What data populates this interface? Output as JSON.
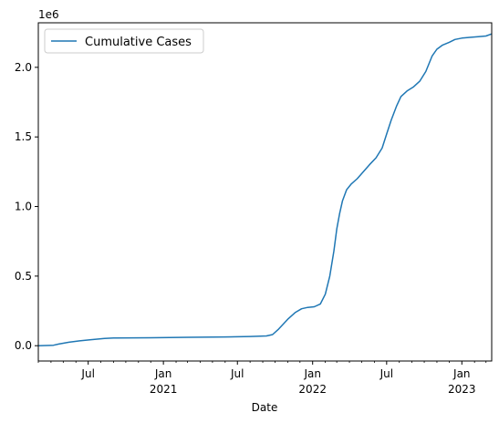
{
  "chart_data": {
    "type": "line",
    "xlabel": "Date",
    "ylabel": "",
    "offset_text": "1e6",
    "xlim": [
      "2020-03-01",
      "2023-03-15"
    ],
    "ylim": [
      -0.11,
      2.32
    ],
    "grid": false,
    "legend": {
      "placement": "top-left",
      "entries": [
        "Cumulative Cases"
      ]
    },
    "y_ticks": [
      {
        "value": 0.0,
        "label": "0.0"
      },
      {
        "value": 0.5,
        "label": "0.5"
      },
      {
        "value": 1.0,
        "label": "1.0"
      },
      {
        "value": 1.5,
        "label": "1.5"
      },
      {
        "value": 2.0,
        "label": "2.0"
      }
    ],
    "x_major_ticks": [
      {
        "date": "2020-07-01",
        "label": "Jul"
      },
      {
        "date": "2021-01-01",
        "label": "Jan",
        "sublabel": "2021"
      },
      {
        "date": "2021-07-01",
        "label": "Jul"
      },
      {
        "date": "2022-01-01",
        "label": "Jan",
        "sublabel": "2022"
      },
      {
        "date": "2022-07-01",
        "label": "Jul"
      },
      {
        "date": "2023-01-01",
        "label": "Jan",
        "sublabel": "2023"
      }
    ],
    "x_minor_ticks": [
      "2020-03-01",
      "2020-04-01",
      "2020-05-01",
      "2020-06-01",
      "2020-08-01",
      "2020-09-01",
      "2020-10-01",
      "2020-11-01",
      "2020-12-01",
      "2021-02-01",
      "2021-03-01",
      "2021-04-01",
      "2021-05-01",
      "2021-06-01",
      "2021-08-01",
      "2021-09-01",
      "2021-10-01",
      "2021-11-01",
      "2021-12-01",
      "2022-02-01",
      "2022-03-01",
      "2022-04-01",
      "2022-05-01",
      "2022-06-01",
      "2022-08-01",
      "2022-09-01",
      "2022-10-01",
      "2022-11-01",
      "2022-12-01",
      "2023-02-01",
      "2023-03-01"
    ],
    "series": [
      {
        "name": "Cumulative Cases",
        "color": "#1f77b4",
        "x": [
          "2020-03-01",
          "2020-04-07",
          "2020-04-20",
          "2020-05-15",
          "2020-06-10",
          "2020-07-05",
          "2020-08-10",
          "2020-09-01",
          "2020-12-01",
          "2021-03-01",
          "2021-06-01",
          "2021-08-01",
          "2021-09-10",
          "2021-09-25",
          "2021-10-10",
          "2021-11-01",
          "2021-11-20",
          "2021-12-05",
          "2021-12-20",
          "2022-01-05",
          "2022-01-20",
          "2022-02-01",
          "2022-02-12",
          "2022-02-22",
          "2022-03-01",
          "2022-03-08",
          "2022-03-15",
          "2022-03-25",
          "2022-04-05",
          "2022-04-20",
          "2022-05-05",
          "2022-05-20",
          "2022-06-05",
          "2022-06-20",
          "2022-07-01",
          "2022-07-12",
          "2022-07-25",
          "2022-08-05",
          "2022-08-20",
          "2022-09-05",
          "2022-09-20",
          "2022-10-05",
          "2022-10-20",
          "2022-11-01",
          "2022-11-15",
          "2022-12-01",
          "2022-12-15",
          "2023-01-01",
          "2023-01-20",
          "2023-02-10",
          "2023-03-01",
          "2023-03-15"
        ],
        "values": [
          0.0,
          0.003,
          0.012,
          0.025,
          0.035,
          0.042,
          0.052,
          0.055,
          0.057,
          0.06,
          0.063,
          0.066,
          0.07,
          0.08,
          0.12,
          0.19,
          0.24,
          0.265,
          0.275,
          0.28,
          0.3,
          0.37,
          0.5,
          0.68,
          0.84,
          0.95,
          1.04,
          1.12,
          1.16,
          1.2,
          1.25,
          1.3,
          1.35,
          1.42,
          1.52,
          1.62,
          1.72,
          1.79,
          1.83,
          1.86,
          1.9,
          1.97,
          2.08,
          2.13,
          2.16,
          2.18,
          2.2,
          2.21,
          2.215,
          2.22,
          2.225,
          2.24
        ]
      }
    ]
  }
}
